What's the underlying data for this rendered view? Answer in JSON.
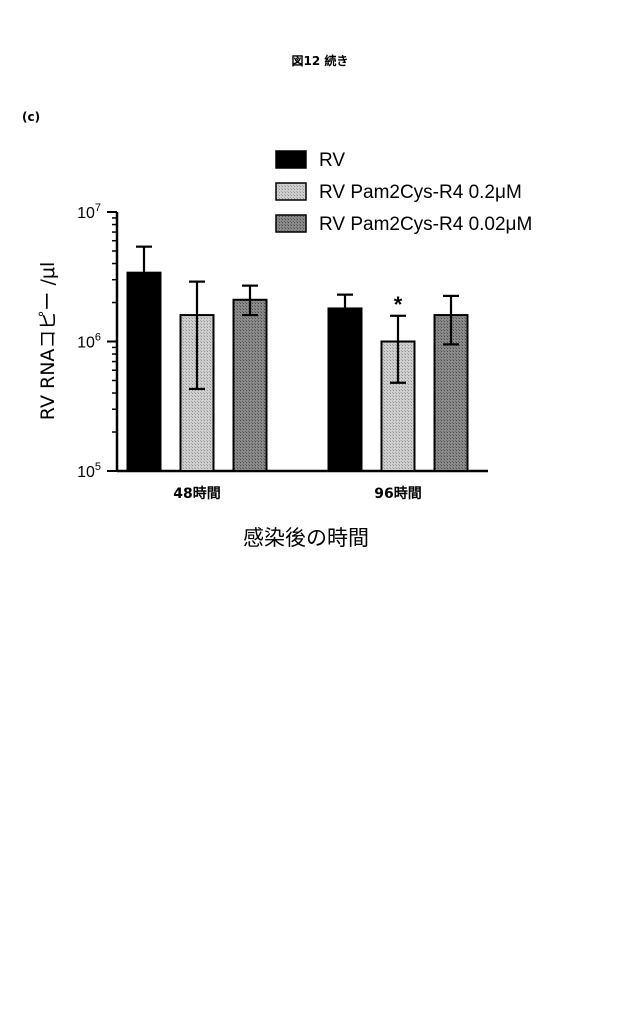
{
  "header": {
    "figure_title": "図12 続き",
    "panel_label": "(c)"
  },
  "chart_data": {
    "type": "bar",
    "title": "",
    "xlabel": "感染後の時間",
    "ylabel": "RV RNAコピー /μl",
    "y_scale": "log",
    "ylim": [
      100000,
      10000000
    ],
    "y_ticks": [
      {
        "value": 100000,
        "mantissa": "10",
        "exp": "5"
      },
      {
        "value": 1000000,
        "mantissa": "10",
        "exp": "6"
      },
      {
        "value": 10000000,
        "mantissa": "10",
        "exp": "7"
      }
    ],
    "categories": [
      "48時間",
      "96時間"
    ],
    "legend_position": "top-right",
    "grid": false,
    "series": [
      {
        "name": "RV",
        "pattern": "solid",
        "color": "#000000",
        "values": [
          3400000,
          1800000
        ],
        "err_low": [
          2100000,
          1300000
        ],
        "err_high": [
          5400000,
          2300000
        ],
        "annotations": [
          "",
          ""
        ]
      },
      {
        "name": "RV Pam2Cys-R4 0.2μM",
        "pattern": "light-hatch",
        "color": "#bdbdbd",
        "values": [
          1600000,
          1000000
        ],
        "err_low": [
          430000,
          480000
        ],
        "err_high": [
          2900000,
          1580000
        ],
        "annotations": [
          "",
          "*"
        ]
      },
      {
        "name": "RV Pam2Cys-R4 0.02μM",
        "pattern": "dark-hatch",
        "color": "#7a7a7a",
        "values": [
          2100000,
          1600000
        ],
        "err_low": [
          1600000,
          950000
        ],
        "err_high": [
          2700000,
          2250000
        ],
        "annotations": [
          "",
          ""
        ]
      }
    ]
  }
}
